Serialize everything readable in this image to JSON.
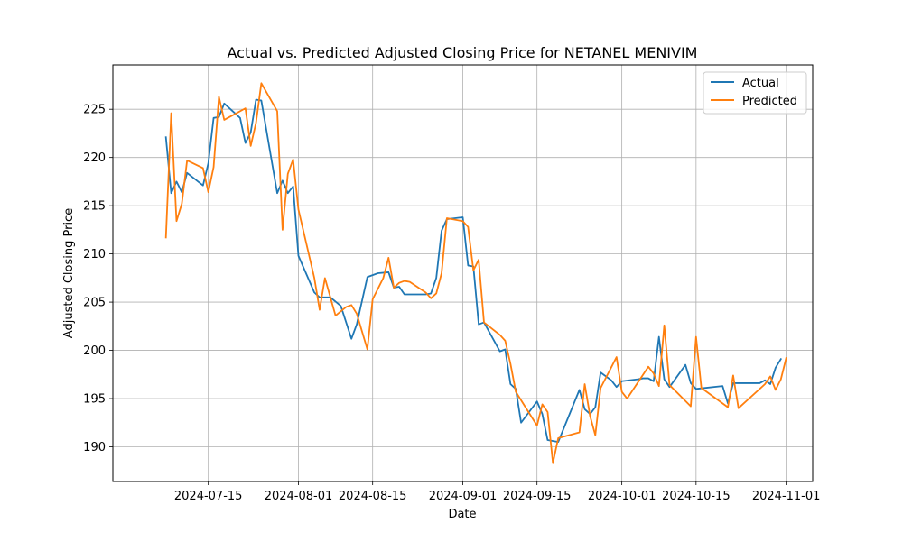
{
  "chart_data": {
    "type": "line",
    "title": "Actual vs. Predicted Adjusted Closing Price for NETANEL MENIVIM",
    "xlabel": "Date",
    "ylabel": "Adjusted Closing Price",
    "xlim": [
      "2024-06-27",
      "2024-11-06"
    ],
    "ylim": [
      186.4,
      229.6
    ],
    "x_ticks": [
      "2024-07-15",
      "2024-08-01",
      "2024-08-15",
      "2024-09-01",
      "2024-09-15",
      "2024-10-01",
      "2024-10-15",
      "2024-11-01"
    ],
    "y_ticks": [
      190,
      195,
      200,
      205,
      210,
      215,
      220,
      225
    ],
    "grid": true,
    "legend_position": "top-right",
    "x": [
      "2024-07-09",
      "2024-07-10",
      "2024-07-11",
      "2024-07-12",
      "2024-07-13",
      "2024-07-14",
      "2024-07-15",
      "2024-07-16",
      "2024-07-17",
      "2024-07-18",
      "2024-07-19",
      "2024-07-20",
      "2024-07-21",
      "2024-07-22",
      "2024-07-23",
      "2024-07-24",
      "2024-07-25",
      "2024-07-26",
      "2024-07-27",
      "2024-07-28",
      "2024-07-29",
      "2024-07-30",
      "2024-07-31",
      "2024-08-01",
      "2024-08-02",
      "2024-08-03",
      "2024-08-04",
      "2024-08-05",
      "2024-08-06",
      "2024-08-07",
      "2024-08-08",
      "2024-08-09",
      "2024-08-10",
      "2024-08-11",
      "2024-08-12",
      "2024-08-13",
      "2024-08-14",
      "2024-08-15",
      "2024-08-16",
      "2024-08-17",
      "2024-08-18",
      "2024-08-19",
      "2024-08-20",
      "2024-08-21",
      "2024-08-22",
      "2024-08-23",
      "2024-08-24",
      "2024-08-25",
      "2024-08-26",
      "2024-08-27",
      "2024-08-28",
      "2024-08-29",
      "2024-08-30",
      "2024-08-31",
      "2024-09-01",
      "2024-09-02",
      "2024-09-03",
      "2024-09-04",
      "2024-09-05",
      "2024-09-06",
      "2024-09-07",
      "2024-09-08",
      "2024-09-09",
      "2024-09-10",
      "2024-09-11",
      "2024-09-12",
      "2024-09-13",
      "2024-09-14",
      "2024-09-15",
      "2024-09-16",
      "2024-09-17",
      "2024-09-18",
      "2024-09-19",
      "2024-09-20",
      "2024-09-21",
      "2024-09-22",
      "2024-09-23",
      "2024-09-24",
      "2024-09-25",
      "2024-09-26",
      "2024-09-27",
      "2024-09-28",
      "2024-09-29",
      "2024-09-30",
      "2024-10-01",
      "2024-10-02",
      "2024-10-03",
      "2024-10-04",
      "2024-10-05",
      "2024-10-06",
      "2024-10-07",
      "2024-10-08",
      "2024-10-09",
      "2024-10-10",
      "2024-10-11",
      "2024-10-12",
      "2024-10-13",
      "2024-10-14",
      "2024-10-15",
      "2024-10-16",
      "2024-10-17",
      "2024-10-18",
      "2024-10-19",
      "2024-10-20",
      "2024-10-21",
      "2024-10-22",
      "2024-10-23",
      "2024-10-24",
      "2024-10-25",
      "2024-10-26",
      "2024-10-27",
      "2024-10-28",
      "2024-10-29",
      "2024-10-30",
      "2024-10-31"
    ],
    "series": [
      {
        "name": "Actual",
        "color": "#1f77b4",
        "points": [
          [
            "2024-07-07",
            222.1
          ],
          [
            "2024-07-08",
            216.3
          ],
          [
            "2024-07-09",
            217.5
          ],
          [
            "2024-07-10",
            216.4
          ],
          [
            "2024-07-11",
            218.4
          ],
          [
            "2024-07-14",
            217.1
          ],
          [
            "2024-07-15",
            219.4
          ],
          [
            "2024-07-16",
            224.1
          ],
          [
            "2024-07-17",
            224.2
          ],
          [
            "2024-07-18",
            225.6
          ],
          [
            "2024-07-21",
            224.1
          ],
          [
            "2024-07-22",
            221.5
          ],
          [
            "2024-07-23",
            222.6
          ],
          [
            "2024-07-24",
            226.0
          ],
          [
            "2024-07-25",
            225.9
          ],
          [
            "2024-07-28",
            216.3
          ],
          [
            "2024-07-29",
            217.6
          ],
          [
            "2024-07-30",
            216.3
          ],
          [
            "2024-07-31",
            217.0
          ],
          [
            "2024-08-01",
            209.8
          ],
          [
            "2024-08-04",
            206.0
          ],
          [
            "2024-08-05",
            205.5
          ],
          [
            "2024-08-07",
            205.5
          ],
          [
            "2024-08-09",
            204.6
          ],
          [
            "2024-08-11",
            201.2
          ],
          [
            "2024-08-12",
            202.7
          ],
          [
            "2024-08-14",
            207.6
          ],
          [
            "2024-08-16",
            208.0
          ],
          [
            "2024-08-18",
            208.1
          ],
          [
            "2024-08-19",
            206.5
          ],
          [
            "2024-08-20",
            206.6
          ],
          [
            "2024-08-21",
            205.8
          ],
          [
            "2024-08-25",
            205.8
          ],
          [
            "2024-08-26",
            205.9
          ],
          [
            "2024-08-27",
            207.5
          ],
          [
            "2024-08-28",
            212.4
          ],
          [
            "2024-08-29",
            213.6
          ],
          [
            "2024-09-01",
            213.8
          ],
          [
            "2024-09-02",
            208.8
          ],
          [
            "2024-09-03",
            208.7
          ],
          [
            "2024-09-04",
            202.7
          ],
          [
            "2024-09-05",
            202.9
          ],
          [
            "2024-09-08",
            199.9
          ],
          [
            "2024-09-09",
            200.1
          ],
          [
            "2024-09-10",
            196.5
          ],
          [
            "2024-09-11",
            196.0
          ],
          [
            "2024-09-12",
            192.5
          ],
          [
            "2024-09-15",
            194.7
          ],
          [
            "2024-09-16",
            193.4
          ],
          [
            "2024-09-17",
            190.7
          ],
          [
            "2024-09-19",
            190.5
          ],
          [
            "2024-09-23",
            195.9
          ],
          [
            "2024-09-24",
            193.9
          ],
          [
            "2024-09-25",
            193.4
          ],
          [
            "2024-09-26",
            194.1
          ],
          [
            "2024-09-27",
            197.7
          ],
          [
            "2024-09-29",
            196.9
          ],
          [
            "2024-09-30",
            196.2
          ],
          [
            "2024-10-01",
            196.8
          ],
          [
            "2024-10-04",
            197.0
          ],
          [
            "2024-10-05",
            197.1
          ],
          [
            "2024-10-06",
            197.1
          ],
          [
            "2024-10-07",
            196.8
          ],
          [
            "2024-10-08",
            201.4
          ],
          [
            "2024-10-09",
            197.0
          ],
          [
            "2024-10-10",
            196.2
          ],
          [
            "2024-10-13",
            198.5
          ],
          [
            "2024-10-14",
            196.6
          ],
          [
            "2024-10-15",
            196.0
          ],
          [
            "2024-10-20",
            196.3
          ],
          [
            "2024-10-21",
            194.5
          ],
          [
            "2024-10-22",
            196.6
          ],
          [
            "2024-10-27",
            196.6
          ],
          [
            "2024-10-28",
            196.9
          ],
          [
            "2024-10-29",
            196.5
          ],
          [
            "2024-10-30",
            198.2
          ],
          [
            "2024-10-31",
            199.1
          ]
        ]
      },
      {
        "name": "Predicted",
        "color": "#ff7f0e",
        "points": [
          [
            "2024-07-07",
            211.7
          ],
          [
            "2024-07-08",
            224.6
          ],
          [
            "2024-07-09",
            213.4
          ],
          [
            "2024-07-10",
            215.2
          ],
          [
            "2024-07-11",
            219.7
          ],
          [
            "2024-07-14",
            218.9
          ],
          [
            "2024-07-15",
            216.4
          ],
          [
            "2024-07-16",
            219.0
          ],
          [
            "2024-07-17",
            226.3
          ],
          [
            "2024-07-18",
            223.9
          ],
          [
            "2024-07-22",
            225.1
          ],
          [
            "2024-07-23",
            221.2
          ],
          [
            "2024-07-24",
            223.6
          ],
          [
            "2024-07-25",
            227.7
          ],
          [
            "2024-07-28",
            224.8
          ],
          [
            "2024-07-29",
            212.5
          ],
          [
            "2024-07-30",
            218.3
          ],
          [
            "2024-07-31",
            219.8
          ],
          [
            "2024-08-01",
            214.6
          ],
          [
            "2024-08-04",
            207.5
          ],
          [
            "2024-08-05",
            204.2
          ],
          [
            "2024-08-06",
            207.5
          ],
          [
            "2024-08-08",
            203.6
          ],
          [
            "2024-08-10",
            204.5
          ],
          [
            "2024-08-11",
            204.7
          ],
          [
            "2024-08-12",
            203.8
          ],
          [
            "2024-08-14",
            200.1
          ],
          [
            "2024-08-15",
            205.3
          ],
          [
            "2024-08-17",
            207.5
          ],
          [
            "2024-08-18",
            209.6
          ],
          [
            "2024-08-19",
            206.5
          ],
          [
            "2024-08-20",
            207.0
          ],
          [
            "2024-08-21",
            207.2
          ],
          [
            "2024-08-22",
            207.1
          ],
          [
            "2024-08-25",
            206.0
          ],
          [
            "2024-08-26",
            205.4
          ],
          [
            "2024-08-27",
            205.9
          ],
          [
            "2024-08-28",
            208.0
          ],
          [
            "2024-08-29",
            213.7
          ],
          [
            "2024-09-01",
            213.4
          ],
          [
            "2024-09-02",
            212.8
          ],
          [
            "2024-09-03",
            208.3
          ],
          [
            "2024-09-04",
            209.4
          ],
          [
            "2024-09-05",
            202.9
          ],
          [
            "2024-09-08",
            201.6
          ],
          [
            "2024-09-09",
            201.0
          ],
          [
            "2024-09-10",
            198.6
          ],
          [
            "2024-09-11",
            195.7
          ],
          [
            "2024-09-15",
            192.2
          ],
          [
            "2024-09-16",
            194.4
          ],
          [
            "2024-09-17",
            193.6
          ],
          [
            "2024-09-18",
            188.3
          ],
          [
            "2024-09-19",
            190.9
          ],
          [
            "2024-09-23",
            191.5
          ],
          [
            "2024-09-24",
            196.5
          ],
          [
            "2024-09-25",
            193.2
          ],
          [
            "2024-09-26",
            191.2
          ],
          [
            "2024-09-27",
            196.1
          ],
          [
            "2024-09-30",
            199.3
          ],
          [
            "2024-10-01",
            195.7
          ],
          [
            "2024-10-02",
            195.0
          ],
          [
            "2024-10-06",
            198.3
          ],
          [
            "2024-10-07",
            197.6
          ],
          [
            "2024-10-08",
            196.3
          ],
          [
            "2024-10-09",
            202.6
          ],
          [
            "2024-10-10",
            196.4
          ],
          [
            "2024-10-14",
            194.2
          ],
          [
            "2024-10-15",
            201.4
          ],
          [
            "2024-10-16",
            196.1
          ],
          [
            "2024-10-21",
            194.1
          ],
          [
            "2024-10-22",
            197.4
          ],
          [
            "2024-10-23",
            194.0
          ],
          [
            "2024-10-28",
            196.5
          ],
          [
            "2024-10-29",
            197.3
          ],
          [
            "2024-10-30",
            195.9
          ],
          [
            "2024-10-31",
            197.0
          ],
          [
            "2024-11-01",
            199.2
          ]
        ]
      }
    ]
  }
}
